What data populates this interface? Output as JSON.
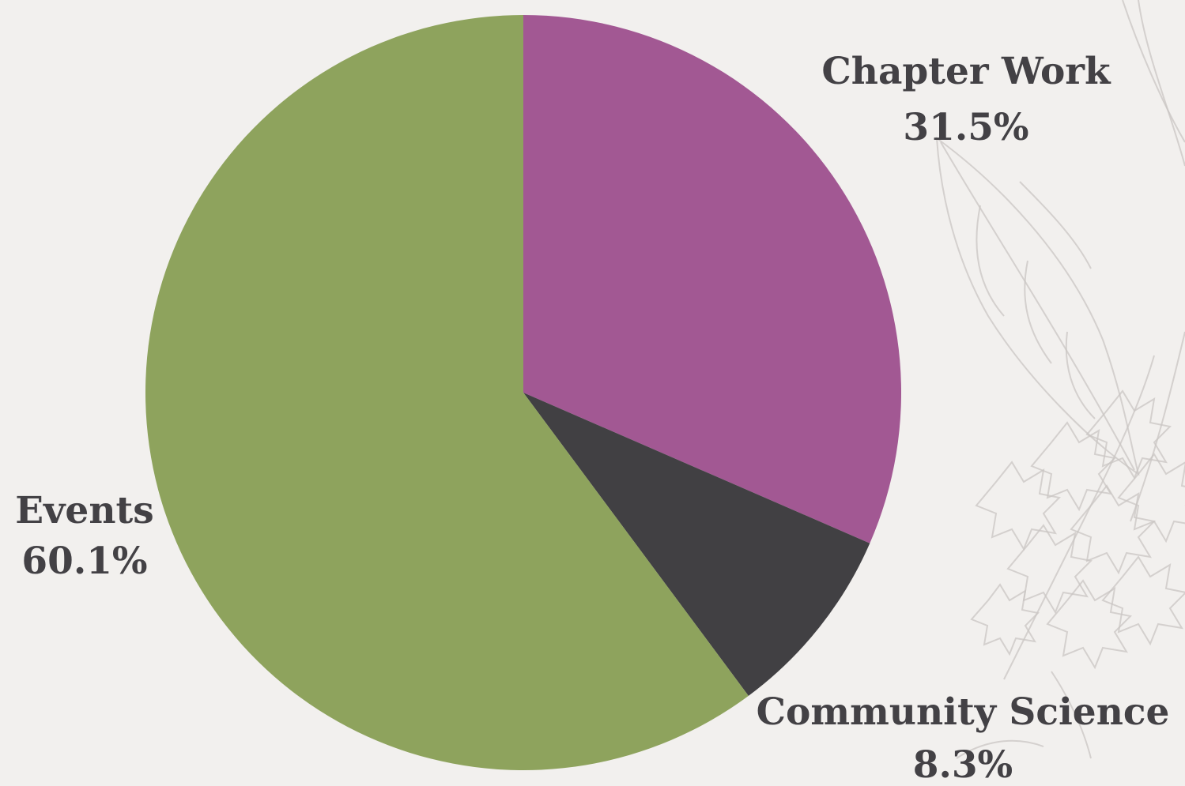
{
  "chart_data": {
    "type": "pie",
    "title": "",
    "start_angle_deg": 0,
    "direction": "clockwise",
    "slices": [
      {
        "label": "Chapter Work",
        "value": 31.5,
        "value_label": "31.5%",
        "color": "#a25893"
      },
      {
        "label": "Community Science",
        "value": 8.3,
        "value_label": "8.3%",
        "color": "#414043"
      },
      {
        "label": "Events",
        "value": 60.1,
        "value_label": "60.1%",
        "color": "#8ea35d"
      }
    ]
  },
  "style": {
    "background": "#f2f0ee",
    "label_color": "#434145",
    "decoration": "botanical-sketch"
  }
}
